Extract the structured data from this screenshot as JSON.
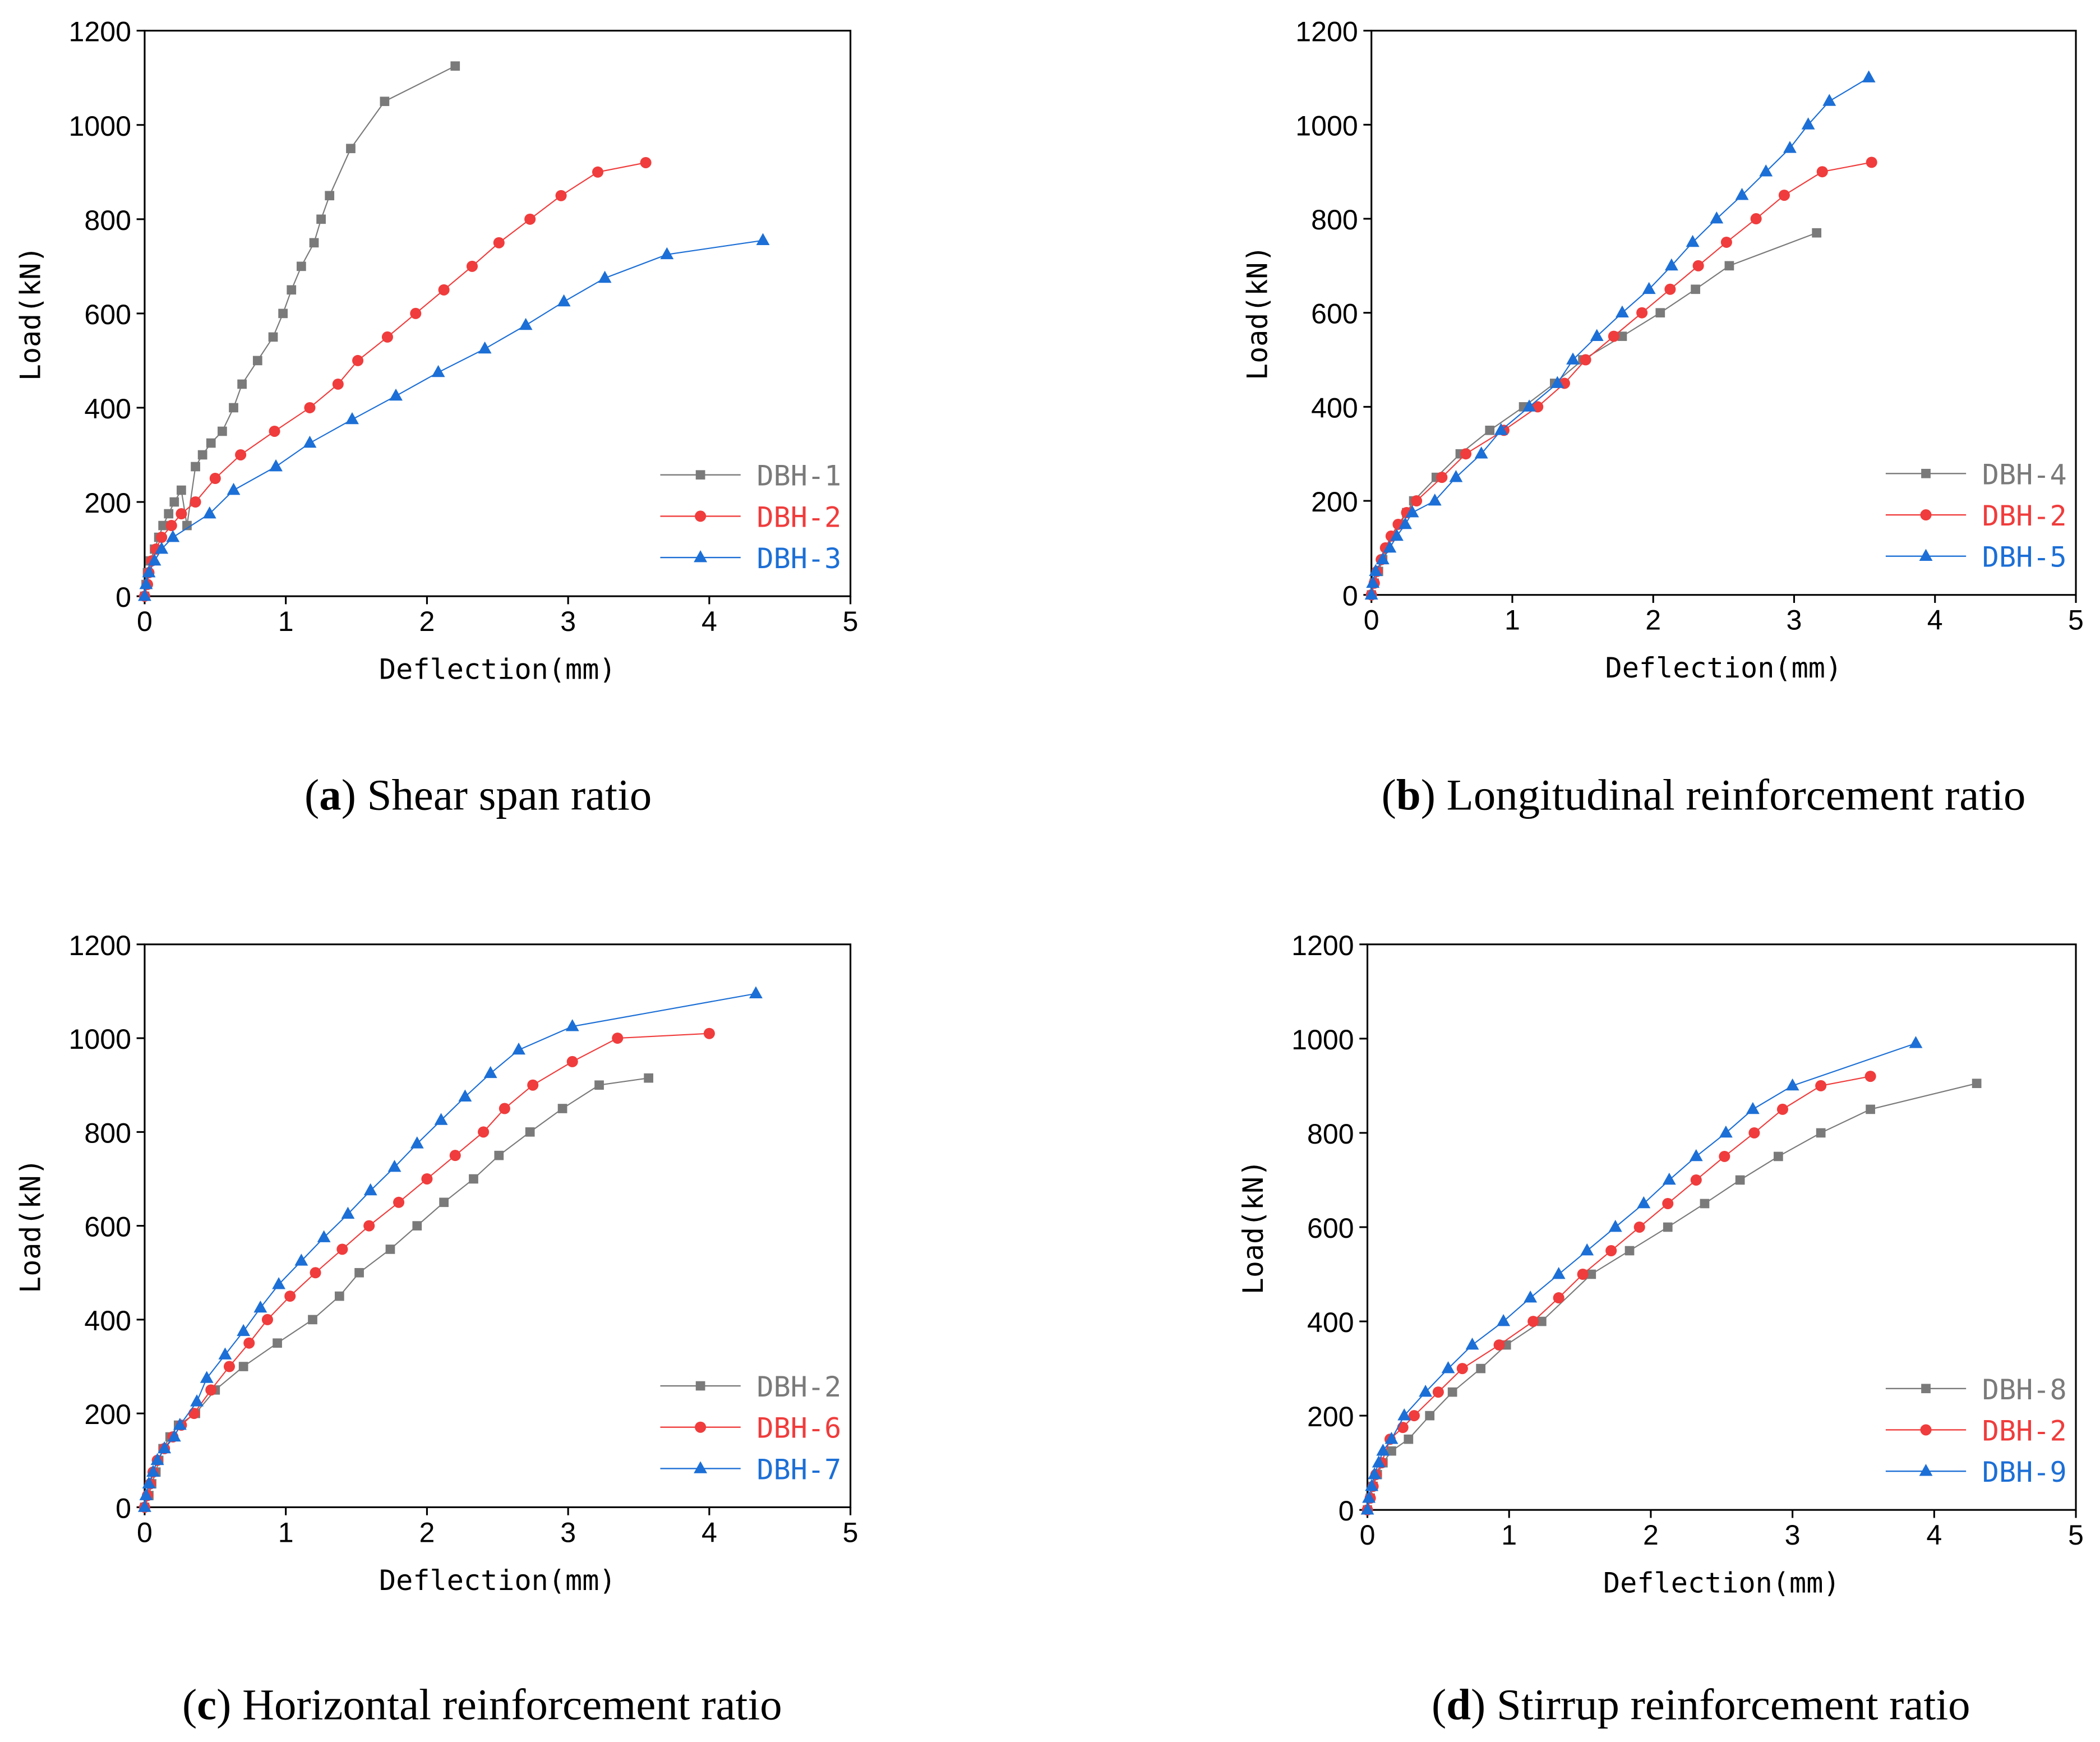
{
  "chart_data": [
    {
      "type": "line",
      "caption": [
        "(",
        "a",
        ") Shear span ratio"
      ],
      "xlabel": "Deflection(mm)",
      "ylabel": "Load(kN)",
      "xlim": [
        0,
        5
      ],
      "ylim": [
        0,
        1200
      ],
      "xticks": [
        0,
        1,
        2,
        3,
        4,
        5
      ],
      "yticks": [
        0,
        200,
        400,
        600,
        800,
        1000,
        1200
      ],
      "legend": "lower right",
      "series": [
        {
          "name": "DBH-1",
          "color": "#7a7a7a",
          "marker": "square",
          "x": [
            0,
            0.01,
            0.02,
            0.04,
            0.07,
            0.1,
            0.13,
            0.17,
            0.21,
            0.26,
            0.3,
            0.36,
            0.41,
            0.47,
            0.55,
            0.63,
            0.69,
            0.8,
            0.91,
            0.98,
            1.04,
            1.11,
            1.2,
            1.25,
            1.31,
            1.46,
            1.7,
            2.2
          ],
          "values": [
            0,
            25,
            50,
            75,
            100,
            125,
            150,
            175,
            200,
            225,
            150,
            275,
            300,
            325,
            350,
            400,
            450,
            500,
            550,
            600,
            650,
            700,
            750,
            800,
            850,
            950,
            1050,
            1125
          ]
        },
        {
          "name": "DBH-2",
          "color": "#f03c3c",
          "marker": "circle",
          "x": [
            0,
            0.02,
            0.03,
            0.05,
            0.08,
            0.12,
            0.19,
            0.26,
            0.36,
            0.5,
            0.68,
            0.92,
            1.17,
            1.37,
            1.51,
            1.72,
            1.92,
            2.12,
            2.32,
            2.51,
            2.73,
            2.95,
            3.21,
            3.55
          ],
          "values": [
            0,
            25,
            50,
            75,
            100,
            125,
            150,
            175,
            200,
            250,
            300,
            350,
            400,
            450,
            500,
            550,
            600,
            650,
            700,
            750,
            800,
            850,
            900,
            920
          ]
        },
        {
          "name": "DBH-3",
          "color": "#1c6fd6",
          "marker": "triangle",
          "x": [
            0,
            0.01,
            0.03,
            0.07,
            0.12,
            0.2,
            0.46,
            0.63,
            0.93,
            1.17,
            1.47,
            1.78,
            2.08,
            2.41,
            2.7,
            2.97,
            3.26,
            3.7,
            4.38
          ],
          "values": [
            0,
            25,
            50,
            75,
            100,
            125,
            175,
            225,
            275,
            325,
            375,
            425,
            475,
            525,
            575,
            625,
            675,
            725,
            755
          ]
        }
      ]
    },
    {
      "type": "line",
      "caption": [
        "(",
        "b",
        ") Longitudinal reinforcement ratio"
      ],
      "xlabel": "Deflection(mm)",
      "ylabel": "Load(kN)",
      "xlim": [
        0,
        5
      ],
      "ylim": [
        0,
        1200
      ],
      "xticks": [
        0,
        1,
        2,
        3,
        4,
        5
      ],
      "yticks": [
        0,
        200,
        400,
        600,
        800,
        1000,
        1200
      ],
      "legend": "lower right",
      "series": [
        {
          "name": "DBH-4",
          "color": "#7a7a7a",
          "marker": "square",
          "x": [
            0,
            0.02,
            0.05,
            0.08,
            0.11,
            0.15,
            0.2,
            0.25,
            0.3,
            0.46,
            0.63,
            0.84,
            1.08,
            1.3,
            1.5,
            1.78,
            2.05,
            2.3,
            2.54,
            3.16
          ],
          "values": [
            0,
            25,
            50,
            75,
            100,
            125,
            150,
            175,
            200,
            250,
            300,
            350,
            400,
            450,
            500,
            550,
            600,
            650,
            700,
            770
          ]
        },
        {
          "name": "DBH-2",
          "color": "#f03c3c",
          "marker": "circle",
          "x": [
            0,
            0.02,
            0.04,
            0.07,
            0.1,
            0.14,
            0.19,
            0.25,
            0.32,
            0.5,
            0.67,
            0.94,
            1.18,
            1.37,
            1.52,
            1.72,
            1.92,
            2.12,
            2.32,
            2.52,
            2.73,
            2.93,
            3.2,
            3.55
          ],
          "values": [
            0,
            25,
            50,
            75,
            100,
            125,
            150,
            175,
            200,
            250,
            300,
            350,
            400,
            450,
            500,
            550,
            600,
            650,
            700,
            750,
            800,
            850,
            900,
            920
          ]
        },
        {
          "name": "DBH-5",
          "color": "#1c6fd6",
          "marker": "triangle",
          "x": [
            0,
            0.01,
            0.03,
            0.08,
            0.13,
            0.18,
            0.24,
            0.29,
            0.45,
            0.6,
            0.78,
            0.92,
            1.12,
            1.32,
            1.43,
            1.6,
            1.78,
            1.97,
            2.13,
            2.28,
            2.45,
            2.63,
            2.8,
            2.97,
            3.1,
            3.25,
            3.53
          ],
          "values": [
            0,
            25,
            50,
            75,
            100,
            125,
            150,
            175,
            200,
            250,
            300,
            350,
            400,
            450,
            500,
            550,
            600,
            650,
            700,
            750,
            800,
            850,
            900,
            950,
            1000,
            1050,
            1100
          ]
        }
      ]
    },
    {
      "type": "line",
      "caption": [
        "(",
        "c",
        ") Horizontal reinforcement ratio"
      ],
      "xlabel": "Deflection(mm)",
      "ylabel": "Load(kN)",
      "xlim": [
        0,
        5
      ],
      "ylim": [
        0,
        1200
      ],
      "xticks": [
        0,
        1,
        2,
        3,
        4,
        5
      ],
      "yticks": [
        0,
        200,
        400,
        600,
        800,
        1000,
        1200
      ],
      "legend": "lower right",
      "series": [
        {
          "name": "DBH-2",
          "color": "#7a7a7a",
          "marker": "square",
          "x": [
            0,
            0.03,
            0.05,
            0.08,
            0.1,
            0.13,
            0.18,
            0.24,
            0.36,
            0.5,
            0.7,
            0.94,
            1.19,
            1.38,
            1.52,
            1.74,
            1.93,
            2.12,
            2.33,
            2.51,
            2.73,
            2.96,
            3.22,
            3.57
          ],
          "values": [
            0,
            25,
            50,
            75,
            100,
            125,
            150,
            175,
            200,
            250,
            300,
            350,
            400,
            450,
            500,
            550,
            600,
            650,
            700,
            750,
            800,
            850,
            900,
            915
          ]
        },
        {
          "name": "DBH-6",
          "color": "#f03c3c",
          "marker": "circle",
          "x": [
            0,
            0.02,
            0.04,
            0.06,
            0.09,
            0.14,
            0.2,
            0.26,
            0.35,
            0.47,
            0.6,
            0.74,
            0.87,
            1.03,
            1.21,
            1.4,
            1.59,
            1.8,
            2.0,
            2.2,
            2.4,
            2.55,
            2.75,
            3.03,
            3.35,
            4.0
          ],
          "values": [
            0,
            25,
            50,
            75,
            100,
            125,
            150,
            175,
            200,
            250,
            300,
            350,
            400,
            450,
            500,
            550,
            600,
            650,
            700,
            750,
            800,
            850,
            900,
            950,
            1000,
            1010
          ]
        },
        {
          "name": "DBH-7",
          "color": "#1c6fd6",
          "marker": "triangle",
          "x": [
            0,
            0.01,
            0.03,
            0.06,
            0.09,
            0.14,
            0.21,
            0.25,
            0.37,
            0.44,
            0.57,
            0.7,
            0.82,
            0.95,
            1.11,
            1.27,
            1.44,
            1.6,
            1.77,
            1.93,
            2.1,
            2.27,
            2.45,
            2.65,
            3.03,
            4.33
          ],
          "values": [
            0,
            25,
            50,
            75,
            100,
            125,
            150,
            175,
            225,
            275,
            325,
            375,
            425,
            475,
            525,
            575,
            625,
            675,
            725,
            775,
            825,
            875,
            925,
            975,
            1025,
            1095
          ]
        }
      ]
    },
    {
      "type": "line",
      "caption": [
        "(",
        "d",
        ") Stirrup reinforcement ratio"
      ],
      "xlabel": "Deflection(mm)",
      "ylabel": "Load(kN)",
      "xlim": [
        0,
        5
      ],
      "ylim": [
        0,
        1200
      ],
      "xticks": [
        0,
        1,
        2,
        3,
        4,
        5
      ],
      "yticks": [
        0,
        200,
        400,
        600,
        800,
        1000,
        1200
      ],
      "legend": "lower right",
      "series": [
        {
          "name": "DBH-8",
          "color": "#7a7a7a",
          "marker": "square",
          "x": [
            0,
            0.02,
            0.04,
            0.07,
            0.11,
            0.17,
            0.29,
            0.44,
            0.6,
            0.8,
            0.98,
            1.23,
            1.58,
            1.85,
            2.12,
            2.38,
            2.63,
            2.9,
            3.2,
            3.55,
            4.3
          ],
          "values": [
            0,
            25,
            50,
            75,
            100,
            125,
            150,
            200,
            250,
            300,
            350,
            400,
            500,
            550,
            600,
            650,
            700,
            750,
            800,
            850,
            905
          ]
        },
        {
          "name": "DBH-2",
          "color": "#f03c3c",
          "marker": "circle",
          "x": [
            0,
            0.02,
            0.04,
            0.06,
            0.1,
            0.16,
            0.25,
            0.33,
            0.5,
            0.67,
            0.93,
            1.17,
            1.35,
            1.52,
            1.72,
            1.92,
            2.12,
            2.32,
            2.52,
            2.73,
            2.93,
            3.2,
            3.55
          ],
          "values": [
            0,
            25,
            50,
            75,
            100,
            150,
            175,
            200,
            250,
            300,
            350,
            400,
            450,
            500,
            550,
            600,
            650,
            700,
            750,
            800,
            850,
            900,
            920
          ]
        },
        {
          "name": "DBH-9",
          "color": "#1c6fd6",
          "marker": "triangle",
          "x": [
            0,
            0.01,
            0.03,
            0.05,
            0.08,
            0.11,
            0.17,
            0.26,
            0.41,
            0.57,
            0.74,
            0.96,
            1.15,
            1.35,
            1.55,
            1.75,
            1.95,
            2.13,
            2.32,
            2.53,
            2.72,
            3.0,
            3.87
          ],
          "values": [
            0,
            25,
            50,
            75,
            100,
            125,
            150,
            200,
            250,
            300,
            350,
            400,
            450,
            500,
            550,
            600,
            650,
            700,
            750,
            800,
            850,
            900,
            990
          ]
        }
      ]
    }
  ]
}
